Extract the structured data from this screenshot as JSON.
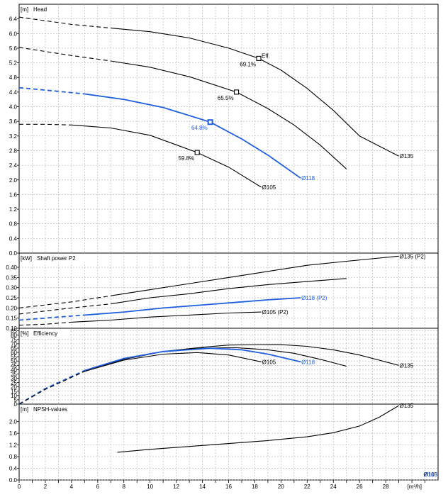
{
  "chart_data": [
    {
      "panel": "head",
      "type": "line",
      "title": "Head",
      "ylabel": "[m]",
      "xlabel": "[m³/h]",
      "ylim": [
        0,
        6.8
      ],
      "xlim": [
        0,
        32
      ],
      "yticks": [
        "0.0",
        "0.4",
        "0.8",
        "1.2",
        "1.6",
        "2.0",
        "2.4",
        "2.8",
        "3.2",
        "3.6",
        "4.0",
        "4.4",
        "4.8",
        "5.2",
        "5.6",
        "6.0",
        "6.4"
      ],
      "xticks": [
        "0",
        "2",
        "4",
        "6",
        "8",
        "10",
        "12",
        "14",
        "16",
        "18",
        "20",
        "22",
        "24",
        "26",
        "28"
      ],
      "series": [
        {
          "name": "Ø135",
          "color": "#000000",
          "dash_until": 7,
          "x": [
            0,
            4,
            7,
            10,
            13,
            16,
            18.3,
            20,
            22,
            24,
            26,
            29
          ],
          "y": [
            6.45,
            6.25,
            6.15,
            6.05,
            5.88,
            5.6,
            5.32,
            5.0,
            4.5,
            3.9,
            3.2,
            2.65
          ]
        },
        {
          "name": "",
          "color": "#000000",
          "dash_until": 7,
          "x": [
            0,
            4,
            7,
            10,
            13,
            16.6,
            19,
            21,
            23,
            25
          ],
          "y": [
            5.62,
            5.4,
            5.25,
            5.08,
            4.82,
            4.4,
            3.95,
            3.5,
            2.95,
            2.3
          ]
        },
        {
          "name": "Ø118",
          "color": "#1f5fde",
          "dash_until": 5,
          "x": [
            0,
            3,
            5,
            8,
            11,
            14.6,
            17,
            19,
            21.5
          ],
          "y": [
            4.52,
            4.42,
            4.35,
            4.2,
            3.98,
            3.58,
            3.12,
            2.68,
            2.05
          ]
        },
        {
          "name": "Ø105",
          "color": "#000000",
          "dash_until": 4,
          "x": [
            0,
            2,
            4,
            7,
            10,
            13.6,
            16,
            18.5
          ],
          "y": [
            3.52,
            3.52,
            3.5,
            3.42,
            3.22,
            2.75,
            2.35,
            1.8
          ]
        }
      ],
      "eff_points": [
        {
          "x": 18.3,
          "y": 5.32,
          "label": "69.1%",
          "color": "#000000"
        },
        {
          "x": 16.6,
          "y": 4.4,
          "label": "65.5%",
          "color": "#000000"
        },
        {
          "x": 14.6,
          "y": 3.58,
          "label": "64.8%",
          "color": "#1f5fde"
        },
        {
          "x": 13.6,
          "y": 2.75,
          "label": "59.8%",
          "color": "#000000"
        }
      ],
      "eff_marker_label": "Eff."
    },
    {
      "panel": "power",
      "type": "line",
      "title": "Shaft power P2",
      "ylabel": "[kW]",
      "ylim": [
        0.1,
        0.47
      ],
      "yticks": [
        "0.10",
        "0.15",
        "0.20",
        "0.25",
        "0.30",
        "0.35",
        "0.40"
      ],
      "series": [
        {
          "name": "Ø135 (P2)",
          "color": "#000000",
          "dash_until": 7,
          "x": [
            0,
            4,
            7,
            10,
            13,
            16,
            19,
            22,
            25,
            29
          ],
          "y": [
            0.2,
            0.23,
            0.26,
            0.29,
            0.32,
            0.35,
            0.38,
            0.41,
            0.43,
            0.455
          ]
        },
        {
          "name": "",
          "color": "#000000",
          "dash_until": 7,
          "x": [
            0,
            4,
            7,
            10,
            13,
            16,
            19,
            22,
            25
          ],
          "y": [
            0.17,
            0.2,
            0.22,
            0.25,
            0.27,
            0.295,
            0.315,
            0.33,
            0.345
          ]
        },
        {
          "name": "Ø118 (P2)",
          "color": "#1f5fde",
          "dash_until": 5,
          "x": [
            0,
            3,
            5,
            8,
            11,
            14,
            17,
            19,
            21.5
          ],
          "y": [
            0.14,
            0.155,
            0.165,
            0.18,
            0.2,
            0.215,
            0.23,
            0.24,
            0.25
          ]
        },
        {
          "name": "Ø105 (P2)",
          "color": "#000000",
          "dash_until": 4,
          "x": [
            0,
            2,
            4,
            7,
            10,
            13,
            16,
            18.5
          ],
          "y": [
            0.115,
            0.12,
            0.13,
            0.14,
            0.155,
            0.165,
            0.175,
            0.18
          ]
        }
      ]
    },
    {
      "panel": "efficiency",
      "type": "line",
      "title": "Efficiency",
      "ylabel": "[%]",
      "ylim": [
        0,
        88
      ],
      "yticks": [
        "0",
        "5",
        "10",
        "15",
        "20",
        "25",
        "30",
        "35",
        "40",
        "45",
        "50",
        "55",
        "60",
        "65",
        "70",
        "75",
        "80",
        "85"
      ],
      "series": [
        {
          "name": "Ø135",
          "color": "#000000",
          "dash_until": 5,
          "x": [
            0,
            2,
            5,
            8,
            11,
            14,
            16,
            18.3,
            20,
            22,
            24,
            26,
            29
          ],
          "y": [
            0,
            18,
            38,
            52,
            61,
            66,
            68.5,
            69.1,
            69,
            67,
            63,
            57,
            45
          ]
        },
        {
          "name": "",
          "color": "#000000",
          "dash_until": 5,
          "x": [
            0,
            2,
            5,
            8,
            11,
            14,
            16.6,
            19,
            21,
            23,
            25
          ],
          "y": [
            0,
            18,
            38,
            53,
            61,
            65,
            65.5,
            63,
            59,
            52,
            44
          ]
        },
        {
          "name": "Ø118",
          "color": "#1f5fde",
          "dash_until": 5,
          "x": [
            0,
            2,
            5,
            8,
            11,
            14.6,
            17,
            19,
            21.5
          ],
          "y": [
            0,
            18,
            39,
            53,
            61,
            64.8,
            63,
            58,
            49
          ]
        },
        {
          "name": "Ø105",
          "color": "#000000",
          "dash_until": 5,
          "x": [
            0,
            2,
            5,
            8,
            11,
            13.6,
            16,
            18.5
          ],
          "y": [
            0,
            17,
            38,
            51,
            58,
            59.8,
            57,
            49
          ]
        }
      ]
    },
    {
      "panel": "npsh",
      "type": "line",
      "title": "NPSH-values",
      "ylabel": "[m]",
      "ylim": [
        0,
        2.6
      ],
      "yticks": [
        "0.0",
        "0.4",
        "0.8",
        "1.2",
        "1.6",
        "2.0"
      ],
      "series": [
        {
          "name": "Ø135",
          "color": "#000000",
          "dash_until": 0,
          "x": [
            7.5,
            10,
            13,
            16,
            19,
            22,
            24,
            26,
            27.5,
            29
          ],
          "y": [
            0.95,
            1.05,
            1.15,
            1.25,
            1.35,
            1.48,
            1.62,
            1.85,
            2.15,
            2.55
          ]
        }
      ],
      "corner_labels": [
        {
          "text": "Ø105",
          "color": "#000000"
        },
        {
          "text": "Ø118",
          "color": "#1f5fde"
        }
      ]
    }
  ]
}
